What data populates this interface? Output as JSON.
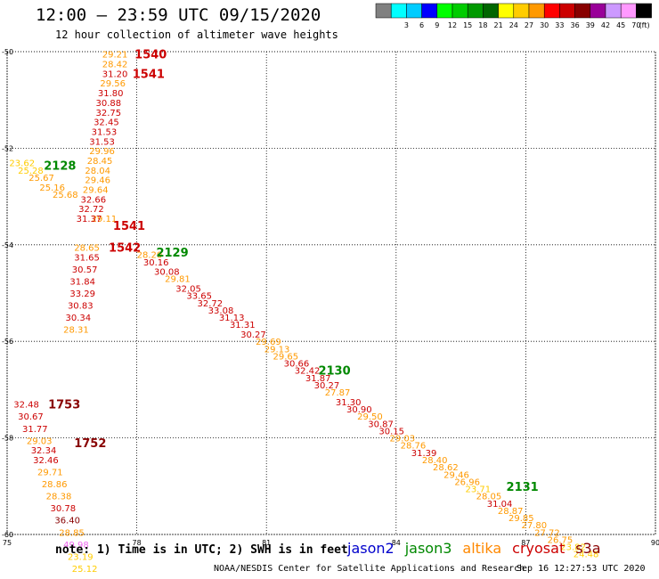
{
  "title": "12:00 – 23:59 UTC 09/15/2020",
  "subtitle": "12 hour collection of altimeter wave heights",
  "note": "note: 1) Time is in UTC; 2) SWH is in feet",
  "credit": "NOAA/NESDIS Center for Satellite Applications and Research",
  "timestamp": "Sep 16 12:27:53 UTC 2020",
  "missions": [
    {
      "name": "jason2",
      "color": "#0000cc"
    },
    {
      "name": "jason3",
      "color": "#008800"
    },
    {
      "name": "altika",
      "color": "#ff8800"
    },
    {
      "name": "cryosat",
      "color": "#cc0000"
    },
    {
      "name": "s3a",
      "color": "#880000"
    }
  ],
  "colorbar": {
    "unit": "(ft)",
    "bins": [
      {
        "color": "#808080",
        "label": ""
      },
      {
        "color": "#00ffff",
        "label": "3"
      },
      {
        "color": "#00ccff",
        "label": "6"
      },
      {
        "color": "#0000ff",
        "label": "9"
      },
      {
        "color": "#00ff00",
        "label": "12"
      },
      {
        "color": "#00cc00",
        "label": "15"
      },
      {
        "color": "#009900",
        "label": "18"
      },
      {
        "color": "#006600",
        "label": "21"
      },
      {
        "color": "#ffff00",
        "label": "24"
      },
      {
        "color": "#ffcc00",
        "label": "27"
      },
      {
        "color": "#ff9900",
        "label": "30"
      },
      {
        "color": "#ff0000",
        "label": "33"
      },
      {
        "color": "#cc0000",
        "label": "36"
      },
      {
        "color": "#880000",
        "label": "39"
      },
      {
        "color": "#990099",
        "label": "42"
      },
      {
        "color": "#cc99ff",
        "label": "45"
      },
      {
        "color": "#ff99ff",
        "label": "70"
      },
      {
        "color": "#000000",
        "label": ""
      }
    ]
  },
  "axes": {
    "lon_range": [
      75,
      90
    ],
    "lat_range": [
      -60,
      -50
    ],
    "lon_ticks": [
      75,
      78,
      81,
      84,
      87,
      90
    ],
    "lat_ticks": [
      -50,
      -52,
      -54,
      -56,
      -58,
      -60
    ],
    "lon_labels": [
      "75",
      "78",
      "81",
      "84",
      "87",
      "90"
    ],
    "lat_labels": [
      "-50",
      "-52",
      "-54",
      "-56",
      "-58",
      "-60"
    ]
  },
  "passes": [
    {
      "label": "1540",
      "color": "#cc0000",
      "lon": 77.95,
      "lat": -50.05
    },
    {
      "label": "1541",
      "color": "#cc0000",
      "lon": 77.9,
      "lat": -50.45
    },
    {
      "label": "2128",
      "color": "#008800",
      "lon": 75.85,
      "lat": -52.35
    },
    {
      "label": "1541",
      "color": "#cc0000",
      "lon": 77.45,
      "lat": -53.6
    },
    {
      "label": "1542",
      "color": "#cc0000",
      "lon": 77.35,
      "lat": -54.05
    },
    {
      "label": "2129",
      "color": "#008800",
      "lon": 78.45,
      "lat": -54.15
    },
    {
      "label": "2130",
      "color": "#008800",
      "lon": 82.2,
      "lat": -56.6
    },
    {
      "label": "1753",
      "color": "#880000",
      "lon": 75.95,
      "lat": -57.3
    },
    {
      "label": "1752",
      "color": "#880000",
      "lon": 76.55,
      "lat": -58.1
    },
    {
      "label": "2131",
      "color": "#008800",
      "lon": 86.55,
      "lat": -59.0
    }
  ],
  "wave_labels": [
    {
      "value": "29.21",
      "lon": 77.2,
      "lat": -50.05,
      "color": "#ff9900"
    },
    {
      "value": "28.42",
      "lon": 77.2,
      "lat": -50.25,
      "color": "#ff9900"
    },
    {
      "value": "31.20",
      "lon": 77.2,
      "lat": -50.45,
      "color": "#cc0000"
    },
    {
      "value": "29.56",
      "lon": 77.15,
      "lat": -50.65,
      "color": "#ff9900"
    },
    {
      "value": "31.80",
      "lon": 77.1,
      "lat": -50.85,
      "color": "#cc0000"
    },
    {
      "value": "30.88",
      "lon": 77.05,
      "lat": -51.05,
      "color": "#cc0000"
    },
    {
      "value": "32.75",
      "lon": 77.05,
      "lat": -51.25,
      "color": "#cc0000"
    },
    {
      "value": "32.45",
      "lon": 77.0,
      "lat": -51.45,
      "color": "#cc0000"
    },
    {
      "value": "31.53",
      "lon": 76.95,
      "lat": -51.65,
      "color": "#cc0000"
    },
    {
      "value": "31.53",
      "lon": 76.9,
      "lat": -51.85,
      "color": "#cc0000"
    },
    {
      "value": "29.96",
      "lon": 76.9,
      "lat": -52.05,
      "color": "#ff9900"
    },
    {
      "value": "28.45",
      "lon": 76.85,
      "lat": -52.25,
      "color": "#ff9900"
    },
    {
      "value": "28.04",
      "lon": 76.8,
      "lat": -52.45,
      "color": "#ff9900"
    },
    {
      "value": "29.46",
      "lon": 76.8,
      "lat": -52.65,
      "color": "#ff9900"
    },
    {
      "value": "29.64",
      "lon": 76.75,
      "lat": -52.85,
      "color": "#ff9900"
    },
    {
      "value": "32.66",
      "lon": 76.7,
      "lat": -53.05,
      "color": "#cc0000"
    },
    {
      "value": "32.72",
      "lon": 76.65,
      "lat": -53.25,
      "color": "#cc0000"
    },
    {
      "value": "29.11",
      "lon": 76.95,
      "lat": -53.45,
      "color": "#ff9900"
    },
    {
      "value": "31.37",
      "lon": 76.6,
      "lat": -53.45,
      "color": "#cc0000"
    },
    {
      "value": "28.65",
      "lon": 76.55,
      "lat": -54.05,
      "color": "#ff9900"
    },
    {
      "value": "31.65",
      "lon": 76.55,
      "lat": -54.25,
      "color": "#cc0000"
    },
    {
      "value": "30.57",
      "lon": 76.5,
      "lat": -54.5,
      "color": "#cc0000"
    },
    {
      "value": "31.84",
      "lon": 76.45,
      "lat": -54.75,
      "color": "#cc0000"
    },
    {
      "value": "33.29",
      "lon": 76.45,
      "lat": -55.0,
      "color": "#cc0000"
    },
    {
      "value": "30.83",
      "lon": 76.4,
      "lat": -55.25,
      "color": "#cc0000"
    },
    {
      "value": "30.34",
      "lon": 76.35,
      "lat": -55.5,
      "color": "#cc0000"
    },
    {
      "value": "28.31",
      "lon": 76.3,
      "lat": -55.75,
      "color": "#ff9900"
    },
    {
      "value": "23.62",
      "lon": 75.05,
      "lat": -52.3,
      "color": "#ffcc00"
    },
    {
      "value": "25.28",
      "lon": 75.25,
      "lat": -52.45,
      "color": "#ffcc00"
    },
    {
      "value": "25.67",
      "lon": 75.5,
      "lat": -52.6,
      "color": "#ff9900"
    },
    {
      "value": "25.16",
      "lon": 75.75,
      "lat": -52.8,
      "color": "#ff9900"
    },
    {
      "value": "25.68",
      "lon": 76.05,
      "lat": -52.95,
      "color": "#ff9900"
    },
    {
      "value": "28.20",
      "lon": 78.0,
      "lat": -54.2,
      "color": "#ff9900"
    },
    {
      "value": "30.16",
      "lon": 78.15,
      "lat": -54.35,
      "color": "#cc0000"
    },
    {
      "value": "30.08",
      "lon": 78.4,
      "lat": -54.55,
      "color": "#cc0000"
    },
    {
      "value": "29.81",
      "lon": 78.65,
      "lat": -54.7,
      "color": "#ff9900"
    },
    {
      "value": "32.05",
      "lon": 78.9,
      "lat": -54.9,
      "color": "#cc0000"
    },
    {
      "value": "33.65",
      "lon": 79.15,
      "lat": -55.05,
      "color": "#cc0000"
    },
    {
      "value": "32.72",
      "lon": 79.4,
      "lat": -55.2,
      "color": "#cc0000"
    },
    {
      "value": "33.08",
      "lon": 79.65,
      "lat": -55.35,
      "color": "#cc0000"
    },
    {
      "value": "31.13",
      "lon": 79.9,
      "lat": -55.5,
      "color": "#cc0000"
    },
    {
      "value": "31.31",
      "lon": 80.15,
      "lat": -55.65,
      "color": "#cc0000"
    },
    {
      "value": "30.27",
      "lon": 80.4,
      "lat": -55.85,
      "color": "#cc0000"
    },
    {
      "value": "29.69",
      "lon": 80.75,
      "lat": -56.0,
      "color": "#ff9900"
    },
    {
      "value": "29.13",
      "lon": 80.95,
      "lat": -56.15,
      "color": "#ff9900"
    },
    {
      "value": "29.65",
      "lon": 81.15,
      "lat": -56.3,
      "color": "#ff9900"
    },
    {
      "value": "30.66",
      "lon": 81.4,
      "lat": -56.45,
      "color": "#cc0000"
    },
    {
      "value": "32.42",
      "lon": 81.65,
      "lat": -56.6,
      "color": "#cc0000"
    },
    {
      "value": "31.87",
      "lon": 81.9,
      "lat": -56.75,
      "color": "#cc0000"
    },
    {
      "value": "30.27",
      "lon": 82.1,
      "lat": -56.9,
      "color": "#cc0000"
    },
    {
      "value": "27.87",
      "lon": 82.35,
      "lat": -57.05,
      "color": "#ff9900"
    },
    {
      "value": "31.30",
      "lon": 82.6,
      "lat": -57.25,
      "color": "#cc0000"
    },
    {
      "value": "30.90",
      "lon": 82.85,
      "lat": -57.4,
      "color": "#cc0000"
    },
    {
      "value": "29.50",
      "lon": 83.1,
      "lat": -57.55,
      "color": "#ff9900"
    },
    {
      "value": "30.87",
      "lon": 83.35,
      "lat": -57.7,
      "color": "#cc0000"
    },
    {
      "value": "30.15",
      "lon": 83.6,
      "lat": -57.85,
      "color": "#cc0000"
    },
    {
      "value": "29.03",
      "lon": 83.85,
      "lat": -58.0,
      "color": "#ff9900"
    },
    {
      "value": "28.76",
      "lon": 84.1,
      "lat": -58.15,
      "color": "#ff9900"
    },
    {
      "value": "31.39",
      "lon": 84.35,
      "lat": -58.3,
      "color": "#cc0000"
    },
    {
      "value": "28.40",
      "lon": 84.6,
      "lat": -58.45,
      "color": "#ff9900"
    },
    {
      "value": "28.62",
      "lon": 84.85,
      "lat": -58.6,
      "color": "#ff9900"
    },
    {
      "value": "29.46",
      "lon": 85.1,
      "lat": -58.75,
      "color": "#ff9900"
    },
    {
      "value": "26.96",
      "lon": 85.35,
      "lat": -58.9,
      "color": "#ff9900"
    },
    {
      "value": "23.71",
      "lon": 85.6,
      "lat": -59.05,
      "color": "#ffcc00"
    },
    {
      "value": "28.05",
      "lon": 85.85,
      "lat": -59.2,
      "color": "#ff9900"
    },
    {
      "value": "31.04",
      "lon": 86.1,
      "lat": -59.35,
      "color": "#cc0000"
    },
    {
      "value": "28.87",
      "lon": 86.35,
      "lat": -59.5,
      "color": "#ff9900"
    },
    {
      "value": "29.85",
      "lon": 86.6,
      "lat": -59.65,
      "color": "#ff9900"
    },
    {
      "value": "27.80",
      "lon": 86.9,
      "lat": -59.8,
      "color": "#ff9900"
    },
    {
      "value": "27.72",
      "lon": 87.2,
      "lat": -59.95,
      "color": "#ff9900"
    },
    {
      "value": "26.75",
      "lon": 87.5,
      "lat": -60.1,
      "color": "#ff9900"
    },
    {
      "value": "23.82",
      "lon": 87.8,
      "lat": -60.25,
      "color": "#ffcc00"
    },
    {
      "value": "24.48",
      "lon": 88.1,
      "lat": -60.4,
      "color": "#ffcc00"
    },
    {
      "value": "32.48",
      "lon": 75.15,
      "lat": -57.3,
      "color": "#cc0000"
    },
    {
      "value": "30.67",
      "lon": 75.25,
      "lat": -57.55,
      "color": "#cc0000"
    },
    {
      "value": "31.77",
      "lon": 75.35,
      "lat": -57.8,
      "color": "#cc0000"
    },
    {
      "value": "29.03",
      "lon": 75.45,
      "lat": -58.05,
      "color": "#ff9900"
    },
    {
      "value": "32.34",
      "lon": 75.55,
      "lat": -58.25,
      "color": "#cc0000"
    },
    {
      "value": "32.46",
      "lon": 75.6,
      "lat": -58.45,
      "color": "#cc0000"
    },
    {
      "value": "29.71",
      "lon": 75.7,
      "lat": -58.7,
      "color": "#ff9900"
    },
    {
      "value": "28.86",
      "lon": 75.8,
      "lat": -58.95,
      "color": "#ff9900"
    },
    {
      "value": "28.38",
      "lon": 75.9,
      "lat": -59.2,
      "color": "#ff9900"
    },
    {
      "value": "30.78",
      "lon": 76.0,
      "lat": -59.45,
      "color": "#cc0000"
    },
    {
      "value": "36.40",
      "lon": 76.1,
      "lat": -59.7,
      "color": "#880000"
    },
    {
      "value": "28.85",
      "lon": 76.2,
      "lat": -59.95,
      "color": "#ff9900"
    },
    {
      "value": "49.98",
      "lon": 76.3,
      "lat": -60.2,
      "color": "#ee66ee"
    },
    {
      "value": "23.19",
      "lon": 76.4,
      "lat": -60.45,
      "color": "#ffcc00"
    },
    {
      "value": "25.12",
      "lon": 76.5,
      "lat": -60.7,
      "color": "#ffcc00"
    }
  ]
}
